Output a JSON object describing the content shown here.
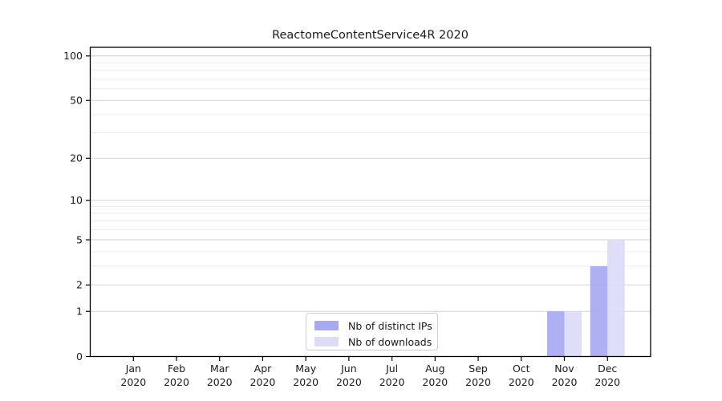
{
  "figure": {
    "background": "#ffffff",
    "text_color": "#1a1a1a"
  },
  "chart_data": {
    "type": "bar",
    "title": "ReactomeContentService4R 2020",
    "categories": [
      "Jan 2020",
      "Feb 2020",
      "Mar 2020",
      "Apr 2020",
      "May 2020",
      "Jun 2020",
      "Jul 2020",
      "Aug 2020",
      "Sep 2020",
      "Oct 2020",
      "Nov 2020",
      "Dec 2020"
    ],
    "x_months": [
      "Jan",
      "Feb",
      "Mar",
      "Apr",
      "May",
      "Jun",
      "Jul",
      "Aug",
      "Sep",
      "Oct",
      "Nov",
      "Dec"
    ],
    "x_year": "2020",
    "series": [
      {
        "name": "Nb of distinct IPs",
        "color": "#a9a9f2",
        "values": [
          0,
          0,
          0,
          0,
          0,
          0,
          0,
          0,
          0,
          0,
          1,
          3
        ]
      },
      {
        "name": "Nb of downloads",
        "color": "#dcdcf8",
        "values": [
          0,
          0,
          0,
          0,
          0,
          0,
          0,
          0,
          0,
          0,
          1,
          5
        ]
      }
    ],
    "yscale": "log1p",
    "ylim": [
      0,
      115
    ],
    "yticks": [
      0,
      1,
      2,
      5,
      10,
      20,
      50,
      100
    ],
    "yticks_minor": [
      3,
      4,
      6,
      7,
      8,
      9,
      30,
      40,
      60,
      70,
      80,
      90
    ],
    "grid": "horizontal",
    "legend_position": "lower-center-inside",
    "axis_color": "#000000",
    "grid_major_color": "#d6d6d6",
    "grid_minor_color": "#ededed",
    "grid_top_color": "#c6c6c6"
  }
}
